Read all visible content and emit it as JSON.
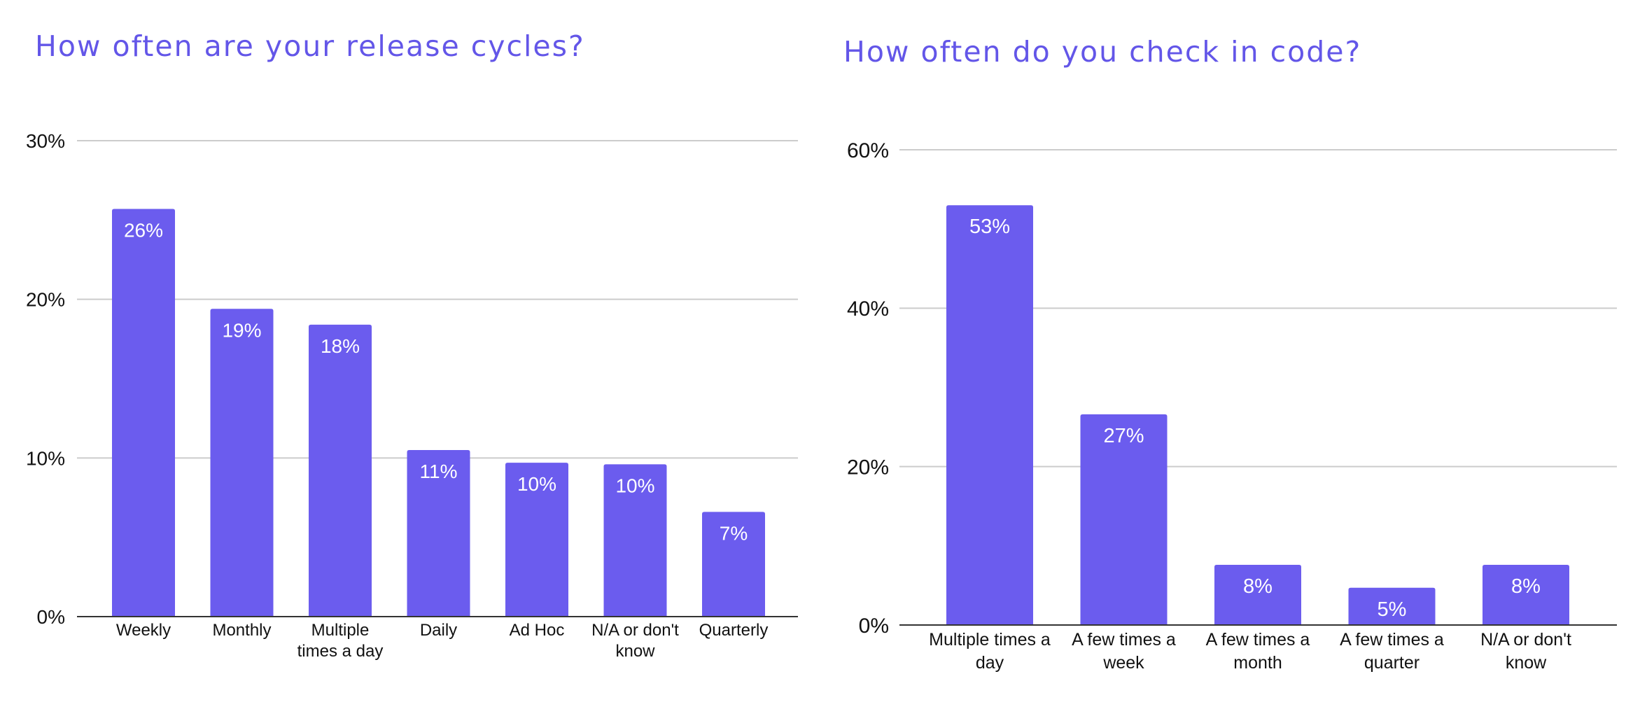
{
  "style": {
    "bar_color": "#6b5cee",
    "title_color": "#6356e8",
    "grid_color": "#cccccc",
    "axis_color": "#333333",
    "label_color": "#111111",
    "bar_label_color": "#ffffff"
  },
  "chart_data": [
    {
      "type": "bar",
      "title": "How often are your release cycles?",
      "categories": [
        "Weekly",
        "Monthly",
        "Multiple times a day",
        "Daily",
        "Ad Hoc",
        "N/A or don't know",
        "Quarterly"
      ],
      "category_lines": [
        [
          "Weekly"
        ],
        [
          "Monthly"
        ],
        [
          "Multiple",
          "times a day"
        ],
        [
          "Daily"
        ],
        [
          "Ad Hoc"
        ],
        [
          "N/A or don't",
          "know"
        ],
        [
          "Quarterly"
        ]
      ],
      "values": [
        25.7,
        19.4,
        18.4,
        10.5,
        9.7,
        9.6,
        6.6
      ],
      "data_labels": [
        "26%",
        "19%",
        "18%",
        "11%",
        "10%",
        "10%",
        "7%"
      ],
      "yticks": [
        0,
        10,
        20,
        30
      ],
      "ytick_labels": [
        "0%",
        "10%",
        "20%",
        "30%"
      ],
      "ylim": [
        0,
        30
      ],
      "grid": true,
      "legend": "none"
    },
    {
      "type": "bar",
      "title": "How often do you check in code?",
      "categories": [
        "Multiple times a day",
        "A few times a week",
        "A few times a month",
        "A few times a quarter",
        "N/A or don't know"
      ],
      "category_lines": [
        [
          "Multiple times a",
          "day"
        ],
        [
          "A few times a",
          "week"
        ],
        [
          "A few times a",
          "month"
        ],
        [
          "A few times a",
          "quarter"
        ],
        [
          "N/A or don't",
          "know"
        ]
      ],
      "values": [
        53,
        26.6,
        7.6,
        4.7,
        7.6
      ],
      "data_labels": [
        "53%",
        "27%",
        "8%",
        "5%",
        "8%"
      ],
      "yticks": [
        0,
        20,
        40,
        60
      ],
      "ytick_labels": [
        "0%",
        "20%",
        "40%",
        "60%"
      ],
      "ylim": [
        0,
        60
      ],
      "grid": true,
      "legend": "none"
    }
  ]
}
